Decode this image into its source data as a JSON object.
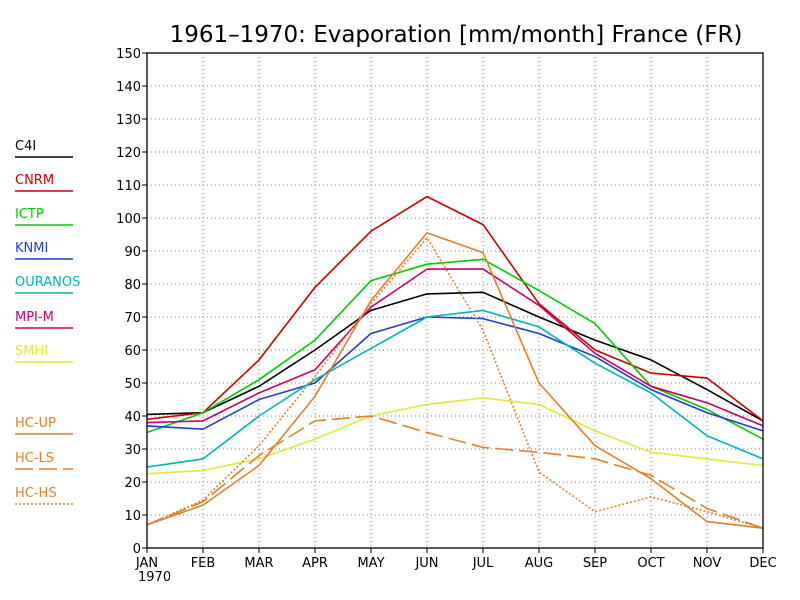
{
  "chart_data": {
    "type": "line",
    "title": "1961–1970: Evaporation [mm/month] France (FR)",
    "categories": [
      "JAN",
      "FEB",
      "MAR",
      "APR",
      "MAY",
      "JUN",
      "JUL",
      "AUG",
      "SEP",
      "OCT",
      "NOV",
      "DEC"
    ],
    "x_sublabel": "1970",
    "ylim": [
      0,
      150
    ],
    "yticks": [
      0,
      10,
      20,
      30,
      40,
      50,
      60,
      70,
      80,
      90,
      100,
      110,
      120,
      130,
      140,
      150
    ],
    "grid": true,
    "legend_position": "left",
    "series": [
      {
        "name": "C4I",
        "color": "#000000",
        "dash": "solid",
        "values": [
          40.5,
          41,
          49,
          60,
          72,
          77,
          77.5,
          70,
          63,
          57,
          48,
          38.5
        ]
      },
      {
        "name": "CNRM",
        "color": "#cc0000",
        "dash": "solid",
        "values": [
          39,
          41,
          57,
          79,
          96,
          106.5,
          98,
          74,
          60,
          53,
          51.5,
          38.5
        ]
      },
      {
        "name": "ICTP",
        "color": "#00cc00",
        "dash": "solid",
        "values": [
          35,
          41,
          51,
          63,
          81,
          86,
          87.5,
          78,
          68,
          49,
          42,
          33
        ]
      },
      {
        "name": "KNMI",
        "color": "#1f3fcc",
        "dash": "solid",
        "values": [
          37,
          36,
          45,
          50,
          65,
          70,
          69.5,
          65,
          58,
          48,
          41,
          35.5
        ]
      },
      {
        "name": "OURANOS",
        "color": "#00b5b5",
        "dash": "solid",
        "values": [
          24.5,
          27,
          40,
          51,
          60.5,
          70,
          72,
          67,
          56,
          47,
          34,
          27
        ]
      },
      {
        "name": "MPI-M",
        "color": "#cc0066",
        "dash": "solid",
        "values": [
          38,
          38.5,
          47,
          54,
          73,
          84.5,
          84.5,
          73.5,
          59,
          49,
          44,
          37
        ]
      },
      {
        "name": "SMHI",
        "color": "#e6e63c",
        "dash": "solid",
        "values": [
          22.5,
          23.5,
          27,
          33,
          40,
          43.5,
          45.5,
          43.5,
          35.5,
          29,
          27,
          25
        ]
      },
      {
        "name": "HC-UP",
        "color": "#e0802c",
        "dash": "solid",
        "values": [
          7,
          13,
          25,
          46,
          75,
          95.5,
          89.5,
          50,
          31,
          21,
          8,
          6
        ]
      },
      {
        "name": "HC-LS",
        "color": "#e0802c",
        "dash": "long",
        "values": [
          7,
          14,
          28,
          38.5,
          40,
          35,
          30.5,
          29,
          27,
          22,
          12,
          6
        ]
      },
      {
        "name": "HC-HS",
        "color": "#e0802c",
        "dash": "dotted",
        "values": [
          7,
          14.5,
          31,
          52,
          74,
          94,
          66,
          23,
          11,
          15.5,
          11,
          6
        ]
      }
    ]
  }
}
